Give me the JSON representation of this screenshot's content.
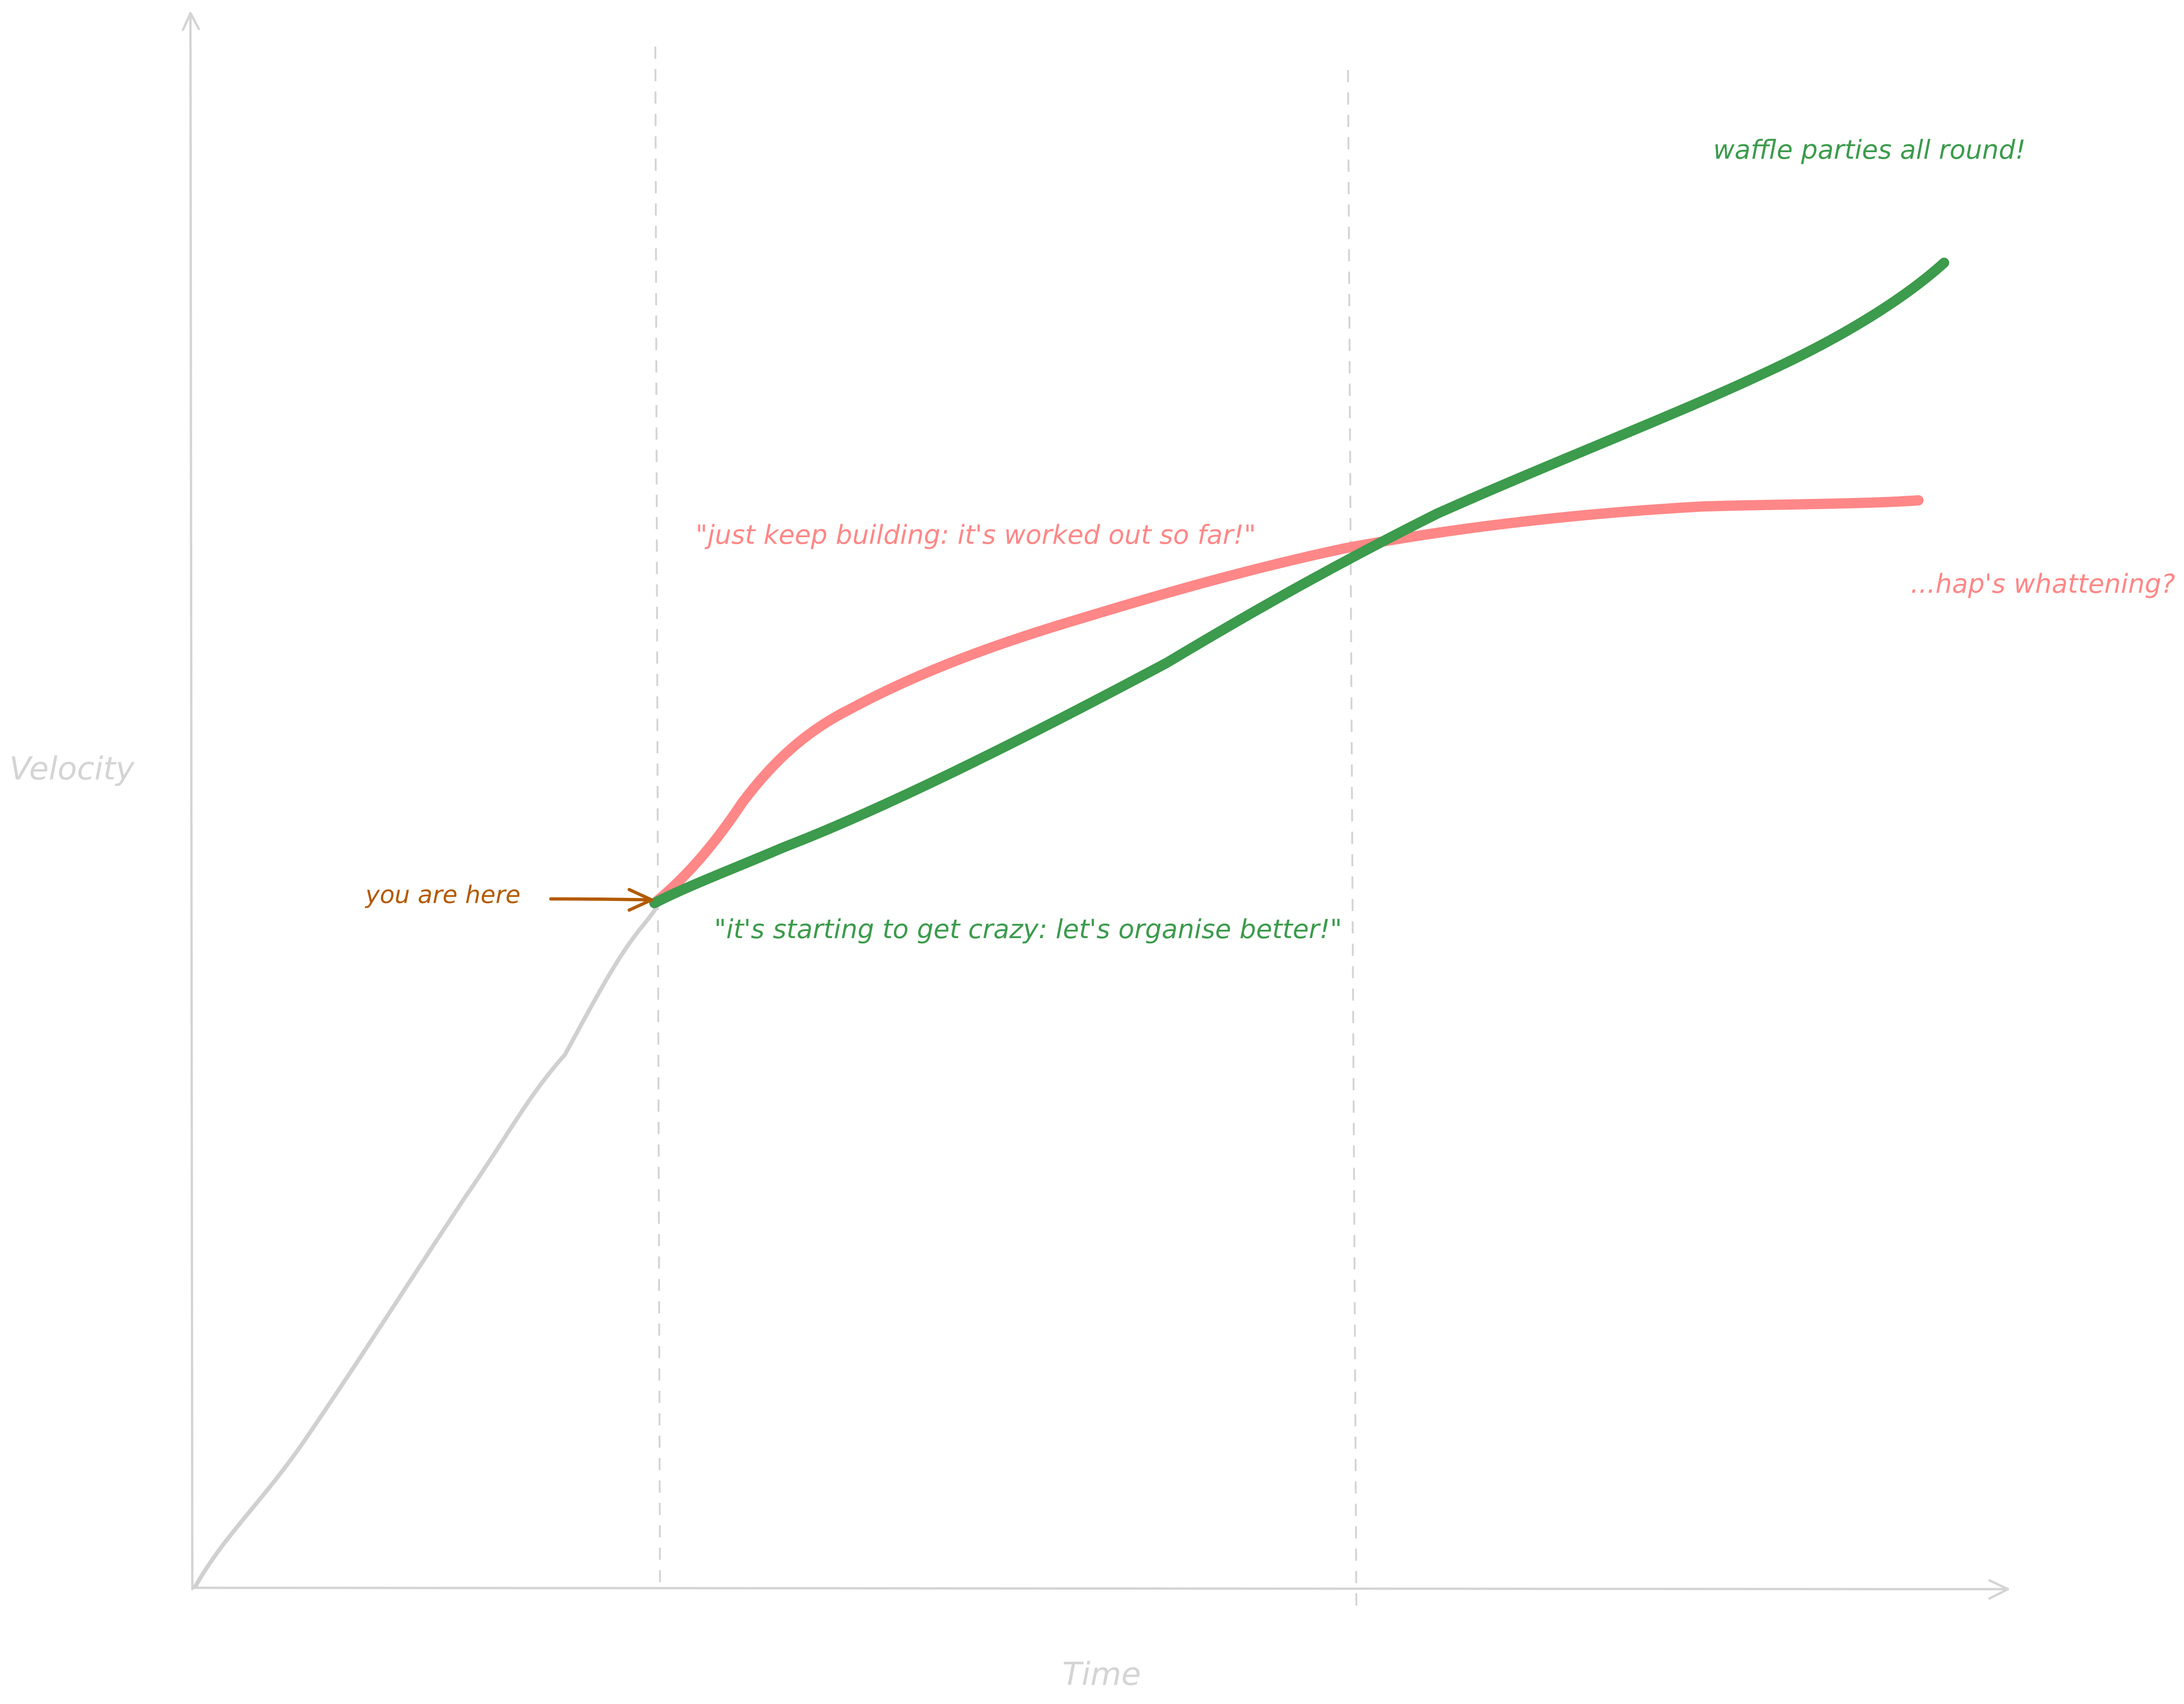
{
  "colors": {
    "background": "#ffffff",
    "axis": "#d4d4d4",
    "baseline_curve": "#d0d0d0",
    "red_curve": "#ff8787",
    "green_curve": "#3c9b4c",
    "you_are_here": "#b35a00"
  },
  "axes": {
    "x_label": "Time",
    "y_label": "Velocity"
  },
  "annotations": {
    "you_are_here": "you are here",
    "red_quote": "\"just keep building: it's worked out so far!\"",
    "green_quote": "\"it's starting to get crazy: let's organise better!\"",
    "green_end": "waffle parties all round!",
    "red_end": "...hap's whattening?"
  }
}
